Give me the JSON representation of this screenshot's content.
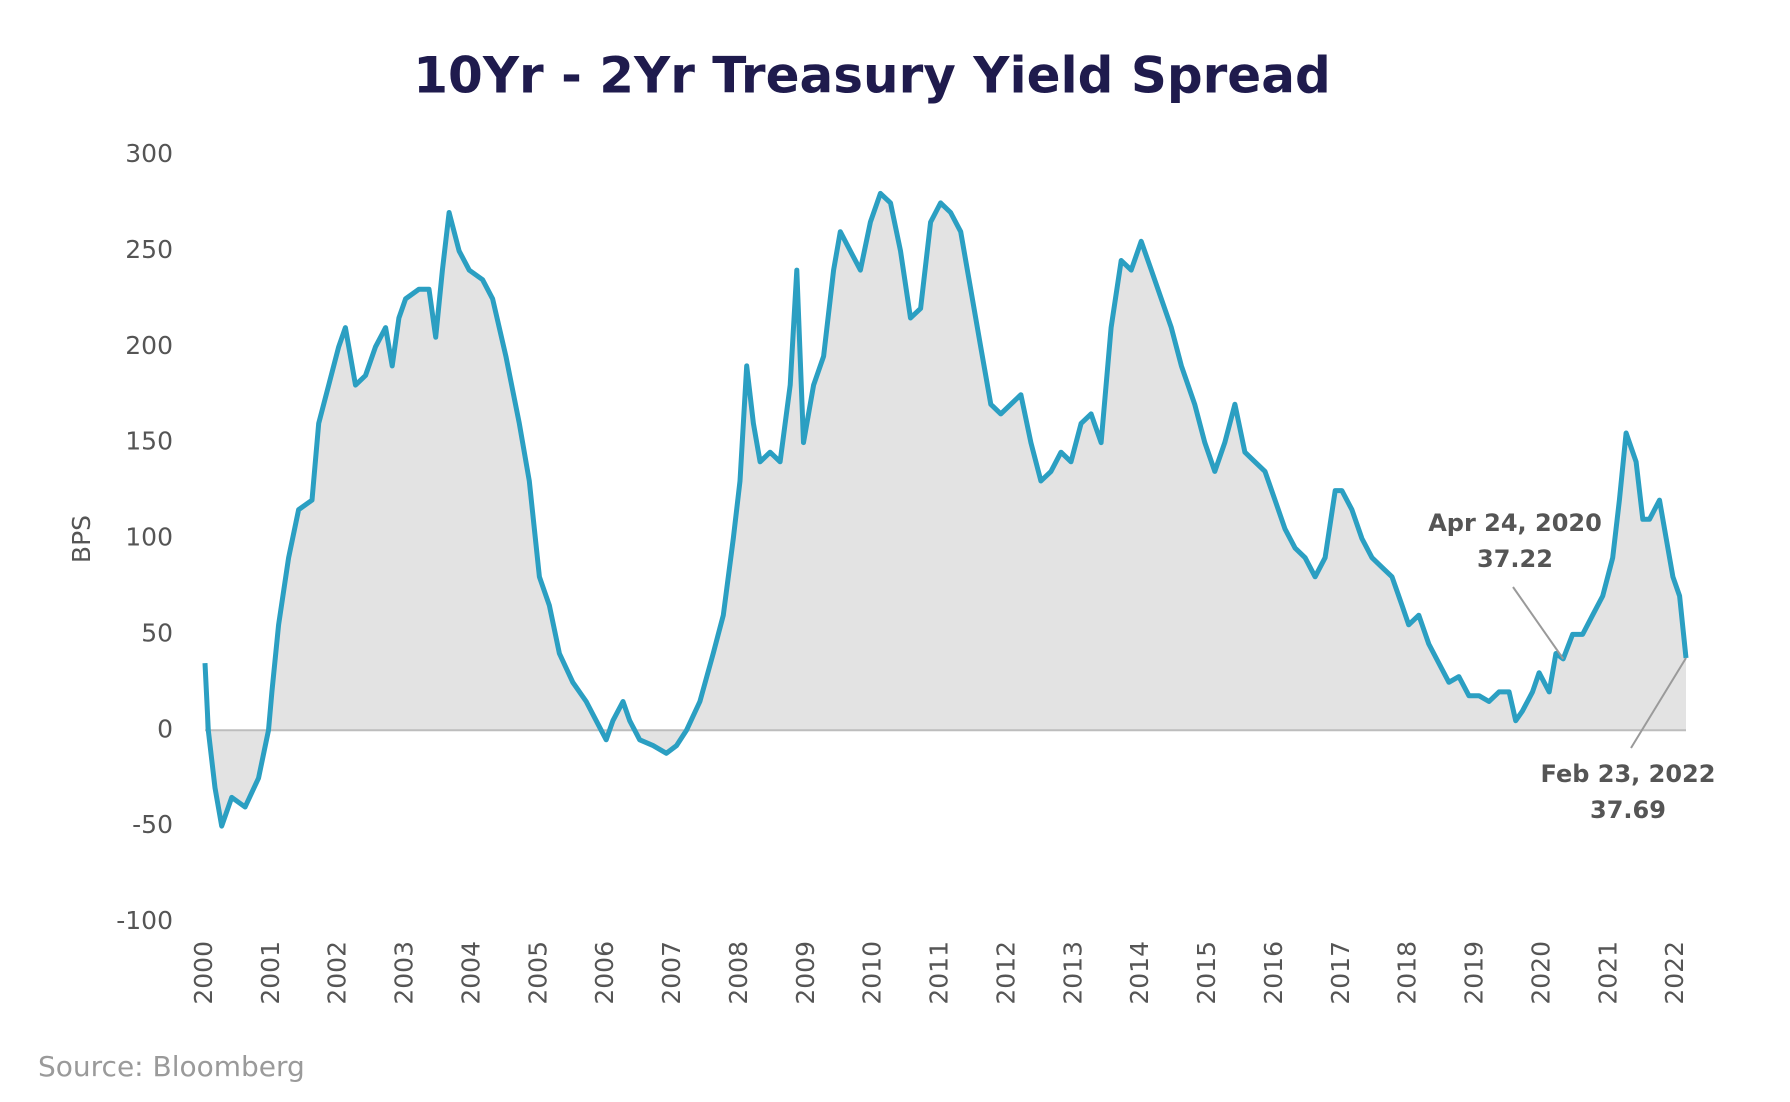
{
  "chart_data": {
    "type": "line",
    "title": "10Yr - 2Yr Treasury Yield Spread",
    "y_label": "BPS",
    "source": "Source: Bloomberg",
    "color": "#2b9fc2",
    "area_color": "#e3e3e3",
    "xlim": [
      2000,
      2022.146
    ],
    "xticks": [
      2000,
      2001,
      2002,
      2003,
      2004,
      2005,
      2006,
      2007,
      2008,
      2009,
      2010,
      2011,
      2012,
      2013,
      2014,
      2015,
      2016,
      2017,
      2018,
      2019,
      2020,
      2021,
      2022
    ],
    "ylim": [
      -100,
      300
    ],
    "yticks": [
      -100,
      -50,
      0,
      50,
      100,
      150,
      200,
      250,
      300
    ],
    "x": [
      2000.0,
      2000.05,
      2000.15,
      2000.25,
      2000.4,
      2000.6,
      2000.8,
      2000.95,
      2001.0,
      2001.1,
      2001.25,
      2001.4,
      2001.6,
      2001.7,
      2001.85,
      2002.0,
      2002.1,
      2002.25,
      2002.4,
      2002.55,
      2002.7,
      2002.8,
      2002.9,
      2003.0,
      2003.2,
      2003.35,
      2003.45,
      2003.55,
      2003.65,
      2003.8,
      2003.95,
      2004.15,
      2004.3,
      2004.5,
      2004.7,
      2004.85,
      2005.0,
      2005.15,
      2005.3,
      2005.5,
      2005.7,
      2005.85,
      2006.0,
      2006.1,
      2006.25,
      2006.35,
      2006.5,
      2006.7,
      2006.9,
      2007.05,
      2007.2,
      2007.4,
      2007.6,
      2007.75,
      2007.9,
      2008.0,
      2008.1,
      2008.2,
      2008.3,
      2008.45,
      2008.6,
      2008.75,
      2008.85,
      2008.95,
      2009.1,
      2009.25,
      2009.4,
      2009.5,
      2009.65,
      2009.8,
      2009.95,
      2010.1,
      2010.25,
      2010.4,
      2010.55,
      2010.7,
      2010.85,
      2011.0,
      2011.15,
      2011.3,
      2011.45,
      2011.6,
      2011.75,
      2011.9,
      2012.05,
      2012.2,
      2012.35,
      2012.5,
      2012.65,
      2012.8,
      2012.95,
      2013.1,
      2013.25,
      2013.4,
      2013.55,
      2013.7,
      2013.85,
      2014.0,
      2014.15,
      2014.3,
      2014.45,
      2014.6,
      2014.8,
      2014.95,
      2015.1,
      2015.25,
      2015.4,
      2015.55,
      2015.7,
      2015.85,
      2016.0,
      2016.15,
      2016.3,
      2016.45,
      2016.6,
      2016.75,
      2016.9,
      2017.0,
      2017.15,
      2017.3,
      2017.45,
      2017.6,
      2017.75,
      2017.9,
      2018.0,
      2018.15,
      2018.3,
      2018.45,
      2018.6,
      2018.75,
      2018.9,
      2019.05,
      2019.2,
      2019.35,
      2019.5,
      2019.6,
      2019.7,
      2019.85,
      2019.95,
      2020.1,
      2020.2,
      2020.31,
      2020.45,
      2020.6,
      2020.75,
      2020.9,
      2021.05,
      2021.15,
      2021.25,
      2021.4,
      2021.5,
      2021.6,
      2021.75,
      2021.85,
      2021.95,
      2022.05,
      2022.146
    ],
    "values": [
      35,
      0,
      -30,
      -50,
      -35,
      -40,
      -25,
      0,
      20,
      55,
      90,
      115,
      120,
      160,
      180,
      200,
      210,
      180,
      185,
      200,
      210,
      190,
      215,
      225,
      230,
      230,
      205,
      240,
      270,
      250,
      240,
      235,
      225,
      195,
      160,
      130,
      80,
      65,
      40,
      25,
      15,
      5,
      -5,
      5,
      15,
      5,
      -5,
      -8,
      -12,
      -8,
      0,
      15,
      40,
      60,
      100,
      130,
      190,
      160,
      140,
      145,
      140,
      180,
      240,
      150,
      180,
      195,
      240,
      260,
      250,
      240,
      265,
      280,
      275,
      250,
      215,
      220,
      265,
      275,
      270,
      260,
      230,
      200,
      170,
      165,
      170,
      175,
      150,
      130,
      135,
      145,
      140,
      160,
      165,
      150,
      210,
      245,
      240,
      255,
      240,
      225,
      210,
      190,
      170,
      150,
      135,
      150,
      170,
      145,
      140,
      135,
      120,
      105,
      95,
      90,
      80,
      90,
      125,
      125,
      115,
      100,
      90,
      85,
      80,
      65,
      55,
      60,
      45,
      35,
      25,
      28,
      18,
      18,
      15,
      20,
      20,
      5,
      10,
      20,
      30,
      20,
      40,
      37.22,
      50,
      50,
      60,
      70,
      90,
      120,
      155,
      140,
      110,
      110,
      120,
      100,
      80,
      70,
      37.69
    ],
    "annotations": [
      {
        "date": "Apr 24, 2020",
        "label": "37.22",
        "x": 2020.31,
        "value": 37.22
      },
      {
        "date": "Feb 23, 2022",
        "label": "37.69",
        "x": 2022.146,
        "value": 37.69
      }
    ]
  }
}
